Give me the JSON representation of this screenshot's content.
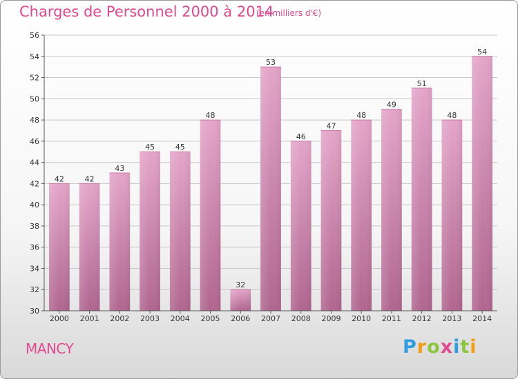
{
  "header": {
    "title": "Charges de Personnel 2000 à 2014",
    "subtitle": "(en milliers d'€)"
  },
  "footer": {
    "city": "MANCY",
    "logo_letters": [
      "P",
      "r",
      "o",
      "x",
      "i",
      "t",
      "i"
    ],
    "logo_colors": [
      "#2f9be0",
      "#f39c12",
      "#8cc63f",
      "#e2488f",
      "#2f9be0",
      "#8cc63f",
      "#f39c12"
    ]
  },
  "chart_data": {
    "type": "bar",
    "title": "Charges de Personnel 2000 à 2014",
    "subtitle": "(en milliers d'€)",
    "categories": [
      "2000",
      "2001",
      "2002",
      "2003",
      "2004",
      "2005",
      "2006",
      "2007",
      "2008",
      "2009",
      "2010",
      "2011",
      "2012",
      "2013",
      "2014"
    ],
    "values": [
      42,
      42,
      43,
      45,
      45,
      48,
      32,
      53,
      46,
      47,
      48,
      49,
      51,
      48,
      54
    ],
    "ylim": [
      30,
      56
    ],
    "yticks": [
      30,
      32,
      34,
      36,
      38,
      40,
      42,
      44,
      46,
      48,
      50,
      52,
      54,
      56
    ],
    "grid": true,
    "bar_color": "#d98bb6",
    "data_labels": true
  }
}
